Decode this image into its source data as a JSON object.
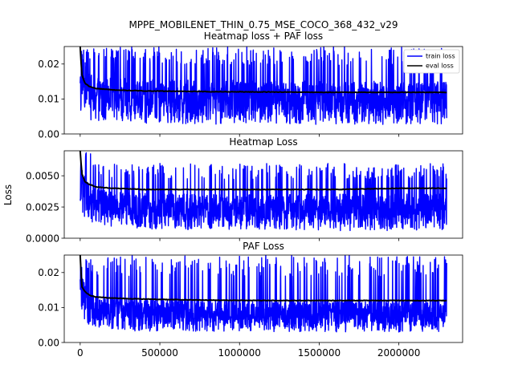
{
  "figure": {
    "suptitle_line1": "MPPE_MOBILENET_THIN_0.75_MSE_COCO_368_432_v29",
    "suptitle_line2": "Heatmap loss + PAF loss",
    "ylabel": "Loss"
  },
  "colors": {
    "train": "#0000ff",
    "eval": "#000000",
    "axes": "#000000",
    "background": "#ffffff"
  },
  "chart_data": [
    {
      "type": "line",
      "title": "",
      "xlabel": "",
      "ylabel": "",
      "xlim": [
        -100000,
        2400000
      ],
      "ylim": [
        0,
        0.025
      ],
      "x_ticks": [
        0,
        500000,
        1000000,
        1500000,
        2000000
      ],
      "x_tick_labels": [],
      "y_ticks": [
        0.0,
        0.01,
        0.02
      ],
      "y_tick_labels": [
        "0.00",
        "0.01",
        "0.02"
      ],
      "grid": false,
      "legend": {
        "position": "upper-right",
        "entries": [
          "train loss",
          "eval loss"
        ]
      },
      "series": [
        {
          "name": "train loss",
          "style": "noisy band",
          "x": [
            0,
            50000,
            100000,
            200000,
            400000,
            800000,
            1200000,
            1600000,
            2000000,
            2300000
          ],
          "center": [
            0.02,
            0.0135,
            0.0128,
            0.0123,
            0.012,
            0.0118,
            0.0117,
            0.0116,
            0.0115,
            0.0115
          ],
          "low": [
            0.006,
            0.004,
            0.0035,
            0.003,
            0.003,
            0.0028,
            0.0028,
            0.0027,
            0.0027,
            0.0027
          ],
          "high": [
            0.025,
            0.025,
            0.025,
            0.025,
            0.025,
            0.025,
            0.025,
            0.025,
            0.025,
            0.025
          ]
        },
        {
          "name": "eval loss",
          "x": [
            0,
            10000,
            30000,
            60000,
            100000,
            200000,
            400000,
            800000,
            1200000,
            1600000,
            2000000,
            2300000
          ],
          "y": [
            0.025,
            0.017,
            0.0145,
            0.0135,
            0.013,
            0.0126,
            0.0123,
            0.0121,
            0.012,
            0.0119,
            0.0119,
            0.0119
          ]
        }
      ]
    },
    {
      "type": "line",
      "title": "Heatmap Loss",
      "xlabel": "",
      "ylabel": "",
      "xlim": [
        -100000,
        2400000
      ],
      "ylim": [
        0,
        0.007
      ],
      "x_ticks": [
        0,
        500000,
        1000000,
        1500000,
        2000000
      ],
      "x_tick_labels": [],
      "y_ticks": [
        0.0,
        0.0025,
        0.005
      ],
      "y_tick_labels": [
        "0.0000",
        "0.0025",
        "0.0050"
      ],
      "grid": false,
      "series": [
        {
          "name": "train loss",
          "style": "noisy band",
          "x": [
            0,
            50000,
            100000,
            200000,
            400000,
            800000,
            1200000,
            1600000,
            2000000,
            2300000
          ],
          "center": [
            0.0048,
            0.0035,
            0.0031,
            0.0029,
            0.0028,
            0.0027,
            0.0027,
            0.0027,
            0.0027,
            0.0027
          ],
          "low": [
            0.002,
            0.0012,
            0.0009,
            0.0008,
            0.0007,
            0.0007,
            0.0007,
            0.0006,
            0.0006,
            0.0006
          ],
          "high": [
            0.007,
            0.007,
            0.0065,
            0.006,
            0.006,
            0.006,
            0.006,
            0.006,
            0.006,
            0.006
          ]
        },
        {
          "name": "eval loss",
          "x": [
            0,
            10000,
            30000,
            60000,
            100000,
            200000,
            400000,
            800000,
            1200000,
            1600000,
            2000000,
            2300000
          ],
          "y": [
            0.007,
            0.0052,
            0.0045,
            0.0043,
            0.0041,
            0.004,
            0.0039,
            0.0039,
            0.0039,
            0.0039,
            0.004,
            0.004
          ]
        }
      ]
    },
    {
      "type": "line",
      "title": "PAF Loss",
      "xlabel": "",
      "ylabel": "",
      "xlim": [
        -100000,
        2400000
      ],
      "ylim": [
        0,
        0.025
      ],
      "x_ticks": [
        0,
        500000,
        1000000,
        1500000,
        2000000
      ],
      "x_tick_labels": [
        "0",
        "500000",
        "1000000",
        "1500000",
        "2000000"
      ],
      "y_ticks": [
        0.0,
        0.01,
        0.02
      ],
      "y_tick_labels": [
        "0.00",
        "0.01",
        "0.02"
      ],
      "grid": false,
      "series": [
        {
          "name": "train loss",
          "style": "noisy band",
          "x": [
            0,
            50000,
            100000,
            200000,
            400000,
            800000,
            1200000,
            1600000,
            2000000,
            2300000
          ],
          "center": [
            0.016,
            0.0115,
            0.0105,
            0.01,
            0.0096,
            0.0094,
            0.0093,
            0.0092,
            0.0092,
            0.0092
          ],
          "low": [
            0.006,
            0.0045,
            0.004,
            0.0035,
            0.0032,
            0.0032,
            0.0031,
            0.003,
            0.003,
            0.003
          ],
          "high": [
            0.025,
            0.025,
            0.025,
            0.025,
            0.025,
            0.025,
            0.025,
            0.025,
            0.025,
            0.025
          ]
        },
        {
          "name": "eval loss",
          "x": [
            0,
            10000,
            30000,
            60000,
            100000,
            200000,
            400000,
            800000,
            1200000,
            1600000,
            2000000,
            2300000
          ],
          "y": [
            0.025,
            0.016,
            0.0145,
            0.0135,
            0.013,
            0.0127,
            0.0124,
            0.0121,
            0.012,
            0.012,
            0.012,
            0.012
          ]
        }
      ]
    }
  ]
}
